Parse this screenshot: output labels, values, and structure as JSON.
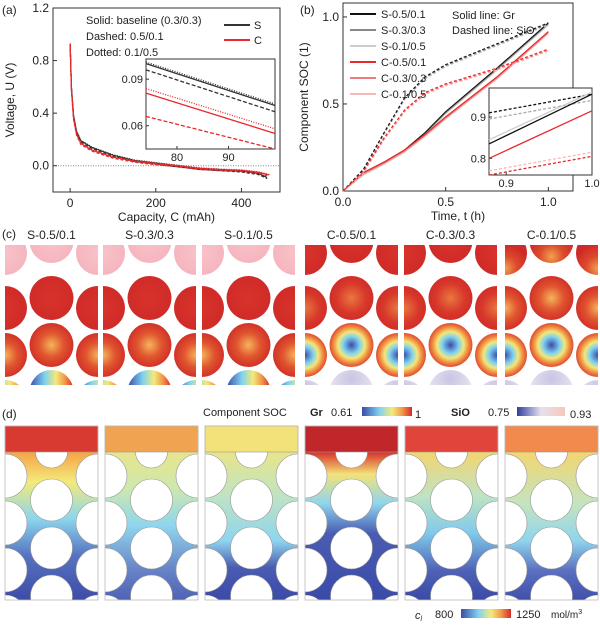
{
  "panel_labels": [
    "(a)",
    "(b)",
    "(c)",
    "(d)"
  ],
  "chart_data": [
    {
      "type": "line",
      "xlabel": "Capacity, C (mAh)",
      "ylabel": "Voltage, U (V)",
      "xlim": [
        -40,
        490
      ],
      "ylim": [
        -0.2,
        1.2
      ],
      "xticks": [
        "0",
        "200",
        "400"
      ],
      "yticks": [
        "0.0",
        "0.4",
        "0.8",
        "1.2"
      ],
      "notes": [
        "Solid: baseline (0.3/0.3)",
        "Dashed: 0.5/0.1",
        "Dotted: 0.1/0.5"
      ],
      "legend": [
        "S",
        "C"
      ],
      "legend_placement": "top-right",
      "colors": {
        "S": "#333333",
        "C": "#e8282b"
      },
      "series": [
        {
          "name": "S",
          "x": [
            0,
            3,
            8,
            15,
            25,
            50,
            100,
            150,
            200,
            250,
            300,
            350,
            400,
            440,
            460
          ],
          "y": [
            0.93,
            0.6,
            0.38,
            0.26,
            0.19,
            0.14,
            0.08,
            0.04,
            0.02,
            0.0,
            -0.02,
            -0.03,
            -0.04,
            -0.06,
            -0.09
          ]
        },
        {
          "name": "C",
          "x": [
            0,
            3,
            8,
            15,
            25,
            50,
            100,
            150,
            200,
            250,
            300,
            350,
            400,
            440,
            465
          ],
          "y": [
            0.93,
            0.58,
            0.36,
            0.24,
            0.17,
            0.12,
            0.065,
            0.035,
            0.015,
            0.0,
            -0.02,
            -0.03,
            -0.035,
            -0.05,
            -0.07
          ]
        }
      ],
      "inset": {
        "xlim": [
          74,
          99
        ],
        "ylim": [
          0.045,
          0.103
        ],
        "xticks": [
          "80",
          "90"
        ],
        "yticks": [
          "0.06",
          "0.09"
        ],
        "series": [
          {
            "group": "S",
            "style": "solid",
            "y0": 0.1,
            "y1": 0.073
          },
          {
            "group": "S",
            "style": "dotted",
            "y0": 0.101,
            "y1": 0.074
          },
          {
            "group": "S",
            "style": "dashed",
            "y0": 0.096,
            "y1": 0.069
          },
          {
            "group": "C",
            "style": "dotted",
            "y0": 0.084,
            "y1": 0.058
          },
          {
            "group": "C",
            "style": "solid",
            "y0": 0.081,
            "y1": 0.055
          },
          {
            "group": "C",
            "style": "dashed",
            "y0": 0.066,
            "y1": 0.045
          }
        ]
      }
    },
    {
      "type": "line",
      "xlabel": "Time, t (h)",
      "ylabel": "Component SOC (1)",
      "xlim": [
        0,
        1.12
      ],
      "ylim": [
        0,
        1.08
      ],
      "xticks": [
        "0.0",
        "0.5",
        "1.0"
      ],
      "yticks": [
        "0.0",
        "0.5",
        "1.0"
      ],
      "notes": [
        "Solid line: Gr",
        "Dashed line: SiO"
      ],
      "legend": [
        {
          "name": "S-0.5/0.1",
          "color": "#111111"
        },
        {
          "name": "S-0.3/0.3",
          "color": "#888888"
        },
        {
          "name": "S-0.1/0.5",
          "color": "#cccccc"
        },
        {
          "name": "C-0.5/0.1",
          "color": "#e8282b"
        },
        {
          "name": "C-0.3/0.3",
          "color": "#ef7a7a"
        },
        {
          "name": "C-0.1/0.5",
          "color": "#f6b9b9"
        }
      ],
      "legend_placement": "top-left",
      "series": [
        {
          "name": "S Gr",
          "x": [
            0,
            0.1,
            0.2,
            0.3,
            0.4,
            0.5,
            0.75,
            1.0
          ],
          "y": [
            0,
            0.1,
            0.16,
            0.23,
            0.33,
            0.45,
            0.7,
            0.96
          ]
        },
        {
          "name": "S SiO",
          "x": [
            0,
            0.1,
            0.2,
            0.3,
            0.4,
            0.5,
            0.75,
            1.0
          ],
          "y": [
            0,
            0.12,
            0.33,
            0.53,
            0.65,
            0.72,
            0.84,
            0.96
          ]
        },
        {
          "name": "C Gr",
          "x": [
            0,
            0.1,
            0.2,
            0.3,
            0.4,
            0.5,
            0.75,
            1.0
          ],
          "y": [
            0,
            0.1,
            0.16,
            0.23,
            0.32,
            0.42,
            0.65,
            0.91
          ]
        },
        {
          "name": "C SiO",
          "x": [
            0,
            0.1,
            0.2,
            0.3,
            0.4,
            0.5,
            0.75,
            1.0
          ],
          "y": [
            0,
            0.11,
            0.3,
            0.46,
            0.56,
            0.61,
            0.7,
            0.81
          ]
        }
      ],
      "inset": {
        "xlim": [
          0.88,
          1.0
        ],
        "ylim": [
          0.76,
          0.97
        ],
        "xticks": [
          "0.9",
          "1.0"
        ],
        "yticks": [
          "0.8",
          "0.9"
        ],
        "series": [
          {
            "color": "#111111",
            "dash": true,
            "y0": 0.91,
            "y1": 0.955
          },
          {
            "color": "#aaaaaa",
            "dash": true,
            "y0": 0.895,
            "y1": 0.94
          },
          {
            "color": "#cccccc",
            "dash": false,
            "y0": 0.845,
            "y1": 0.96
          },
          {
            "color": "#111111",
            "dash": false,
            "y0": 0.835,
            "y1": 0.955
          },
          {
            "color": "#e8282b",
            "dash": false,
            "y0": 0.8,
            "y1": 0.915
          },
          {
            "color": "#f6b9b9",
            "dash": true,
            "y0": 0.77,
            "y1": 0.815
          },
          {
            "color": "#e8282b",
            "dash": true,
            "y0": 0.76,
            "y1": 0.805
          }
        ]
      }
    }
  ],
  "panel_c": {
    "titles": [
      "S-0.5/0.1",
      "S-0.3/0.3",
      "S-0.1/0.5",
      "C-0.5/0.1",
      "C-0.3/0.3",
      "C-0.1/0.5"
    ]
  },
  "colorbars": {
    "soc_label": "Component SOC",
    "gr": {
      "label": "Gr",
      "min": "0.61",
      "max": "1"
    },
    "sio": {
      "label": "SiO",
      "min": "0.75",
      "max": "0.93"
    },
    "cl": {
      "label": "c",
      "sub": "l",
      "min": "800",
      "max": "1250",
      "unit": "mol/m",
      "unit_sup": "3"
    }
  }
}
